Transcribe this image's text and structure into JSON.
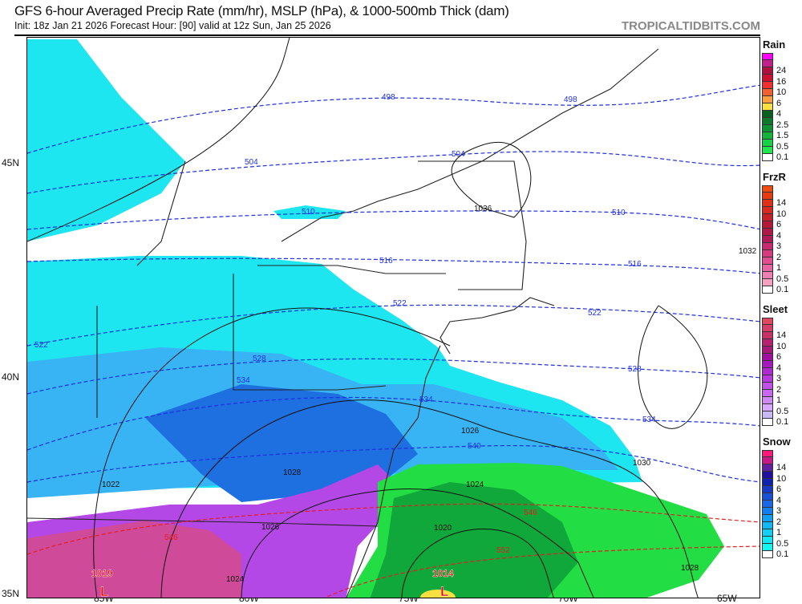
{
  "header": {
    "title": "GFS 6-hour Averaged Precip Rate (mm/hr), MSLP (hPa), & 1000-500mb Thick (dam)",
    "subtitle": "Init: 18z Jan 21 2026   Forecast Hour: [90]   valid at 12z Sun, Jan 25 2026",
    "brand": "TROPICALTIDBITS.COM"
  },
  "axes": {
    "lat_labels": [
      "45N",
      "40N",
      "35N"
    ],
    "lon_labels": [
      "85W",
      "80W",
      "75W",
      "70W",
      "65W"
    ]
  },
  "map": {
    "thickness_labels": [
      "498",
      "498",
      "504",
      "504",
      "510",
      "510",
      "516",
      "516",
      "522",
      "522",
      "522",
      "528",
      "528",
      "534",
      "534",
      "534",
      "540",
      "546",
      "546",
      "552"
    ],
    "pressure_labels": [
      "1036",
      "1032",
      "1026",
      "1030",
      "1028",
      "1024",
      "1022",
      "1026",
      "1020",
      "1024",
      "1028"
    ],
    "lows": [
      {
        "symbol": "L",
        "value": "1019"
      },
      {
        "symbol": "L",
        "value": "1014"
      }
    ],
    "precip_colors": {
      "snow_light": "#1ee6f0",
      "snow_mid": "#38b4f4",
      "snow_heavy": "#1e6fe0",
      "sleet": "#b448e6",
      "sleet_heavy": "#d04a9a",
      "rain": "#22dd44",
      "rain_heavy": "#10a83a",
      "rain_peak": "#f8e040"
    }
  },
  "legend": [
    {
      "title": "Rain",
      "labels": [
        "",
        "24",
        "16",
        "10",
        "6",
        "4",
        "2.5",
        "1.5",
        "0.5",
        "0.1"
      ],
      "colors": [
        "#ff00ff",
        "#c0208a",
        "#b01040",
        "#d01030",
        "#f03030",
        "#f06030",
        "#f8a040",
        "#f8e040",
        "#086020",
        "#0a7a2a",
        "#0c9432",
        "#12b43a",
        "#1ad044",
        "#20e84c",
        "#ffffff"
      ]
    },
    {
      "title": "FrzR",
      "labels": [
        "14",
        "10",
        "6",
        "4",
        "3",
        "2",
        "1",
        "0.5",
        "0.1"
      ],
      "colors": [
        "#f04a10",
        "#e83a10",
        "#e03018",
        "#d82820",
        "#c82028",
        "#b81838",
        "#b01848",
        "#b01858",
        "#c82a70",
        "#d83a80",
        "#e04e90",
        "#e864a0",
        "#f080b0",
        "#f8a0c0",
        "#ffffff"
      ]
    },
    {
      "title": "Sleet",
      "labels": [
        "14",
        "10",
        "6",
        "4",
        "3",
        "2",
        "1",
        "0.5",
        "0.1"
      ],
      "colors": [
        "#e04860",
        "#d83c68",
        "#c83068",
        "#b82070",
        "#a81878",
        "#a010a0",
        "#a818c0",
        "#b028d0",
        "#b838e0",
        "#c050e8",
        "#c868f0",
        "#d088f8",
        "#d8a8ff",
        "#c8b8f8",
        "#ffffff"
      ]
    },
    {
      "title": "Snow",
      "labels": [
        "14",
        "10",
        "6",
        "4",
        "3",
        "2",
        "1",
        "0.5",
        "0.1"
      ],
      "colors": [
        "#ff1878",
        "#c81888",
        "#6020a0",
        "#2010a0",
        "#1020b0",
        "#1838c8",
        "#1850d8",
        "#1868e8",
        "#1080f0",
        "#10a0f8",
        "#10b8f8",
        "#10d0f8",
        "#10e8f8",
        "#10f8f0",
        "#ffffff"
      ]
    }
  ]
}
